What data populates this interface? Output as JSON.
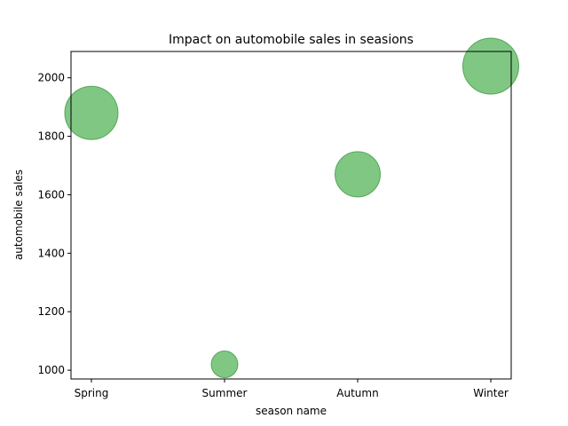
{
  "chart_data": {
    "type": "scatter",
    "title": "Impact on automobile sales in seasions",
    "xlabel": "season name",
    "ylabel": "automobile sales",
    "categories": [
      "Spring",
      "Summer",
      "Autumn",
      "Winter"
    ],
    "values": [
      1880,
      1020,
      1670,
      2040
    ],
    "relative_bubble_size": [
      1.0,
      0.5,
      0.85,
      1.05
    ],
    "ylim": [
      970,
      2090
    ],
    "yticks": [
      "1000",
      "1200",
      "1400",
      "1600",
      "1800",
      "2000"
    ],
    "grid": false,
    "legend": "none",
    "marker_color": "#4caf50",
    "marker_edge_color": "#3a9a3e",
    "marker_opacity": 0.7
  }
}
